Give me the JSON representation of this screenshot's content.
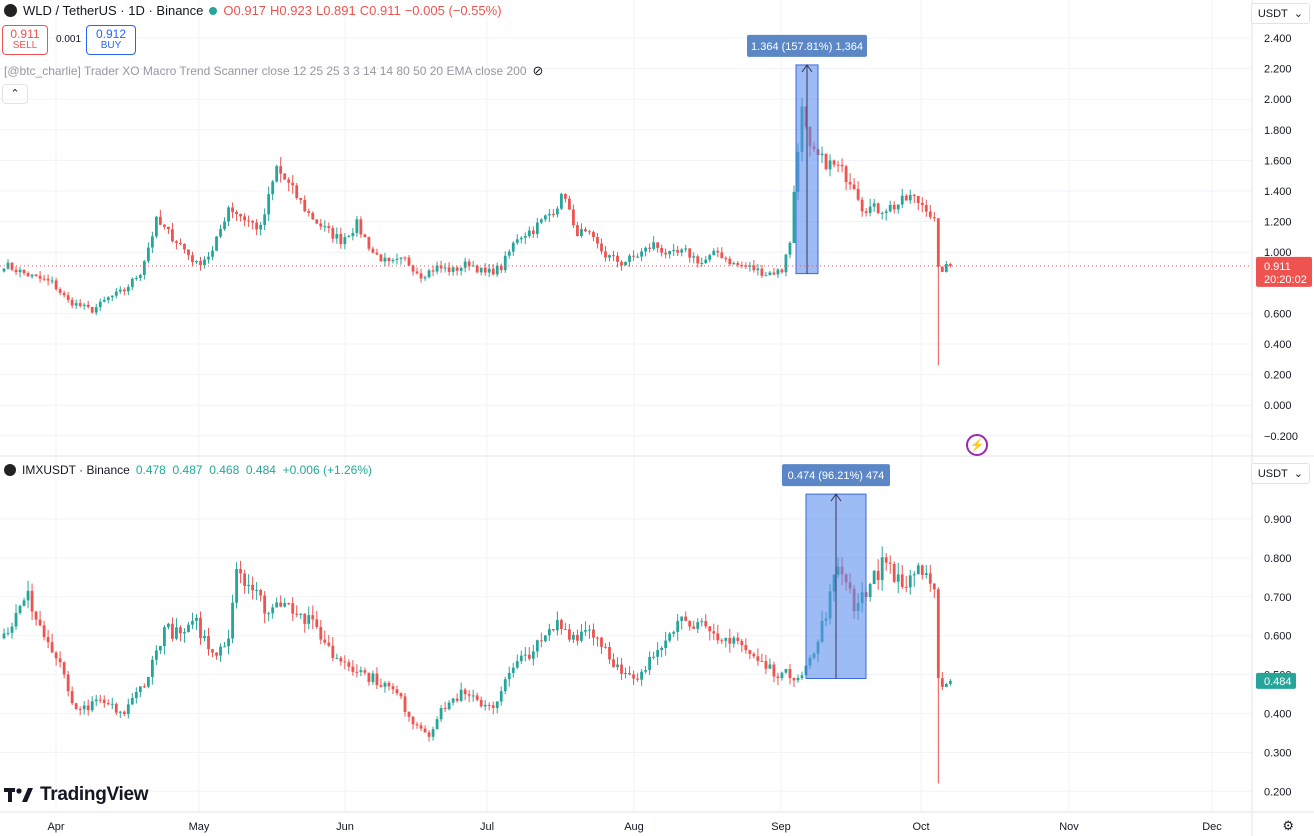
{
  "top": {
    "symbol": "WLD / TetherUS · 1D · Binance",
    "open": "O0.917",
    "high": "H0.923",
    "low": "L0.891",
    "close": "C0.911",
    "change": "−0.005 (−0.55%)",
    "sell_price": "0.911",
    "sell_label": "SELL",
    "spread": "0.001",
    "buy_price": "0.912",
    "buy_label": "BUY",
    "indicator": "[@btc_charlie] Trader XO Macro Trend Scanner close 12 25 25 3 3 14 14 80 50 20 EMA close 200",
    "currency": "USDT",
    "last_price": "0.911",
    "countdown": "20:20:02",
    "measure_label": "1.364 (157.81%) 1,364"
  },
  "bottom": {
    "symbol": "IMXUSDT · Binance",
    "values": "0.478  0.487  0.468  0.484  +0.006 (+1.26%)",
    "currency": "USDT",
    "last_price": "0.484",
    "measure_label": "0.474 (96.21%) 474"
  },
  "logo_text": "TradingView",
  "colors": {
    "up": "#26a69a",
    "down": "#ef5350",
    "measure": "#5b8def",
    "measure_label": "#5b87c7",
    "grid": "#f0f3fa",
    "axis_text": "#131722"
  },
  "chart_data": [
    {
      "type": "candlestick",
      "symbol": "WLD/USDT",
      "y_ticks": [
        "2.400",
        "2.200",
        "2.000",
        "1.800",
        "1.600",
        "1.400",
        "1.200",
        "1.000",
        "0.600",
        "0.400",
        "0.200",
        "0.000",
        "−0.200"
      ],
      "ylim": [
        -0.3,
        2.52
      ],
      "x_ticks": [
        "Apr",
        "May",
        "Jun",
        "Jul",
        "Aug",
        "Sep",
        "Oct",
        "Nov",
        "Dec"
      ],
      "anchors": [
        [
          0,
          0.92
        ],
        [
          6,
          0.85
        ],
        [
          12,
          0.8
        ],
        [
          16,
          0.68
        ],
        [
          22,
          0.62
        ],
        [
          26,
          0.7
        ],
        [
          30,
          0.75
        ],
        [
          34,
          0.87
        ],
        [
          38,
          1.2
        ],
        [
          44,
          1.05
        ],
        [
          48,
          0.92
        ],
        [
          52,
          1.0
        ],
        [
          56,
          1.3
        ],
        [
          60,
          1.22
        ],
        [
          64,
          1.15
        ],
        [
          68,
          1.55
        ],
        [
          72,
          1.4
        ],
        [
          76,
          1.25
        ],
        [
          80,
          1.15
        ],
        [
          84,
          1.08
        ],
        [
          88,
          1.18
        ],
        [
          92,
          1.0
        ],
        [
          96,
          0.92
        ],
        [
          100,
          0.95
        ],
        [
          104,
          0.85
        ],
        [
          108,
          0.9
        ],
        [
          112,
          0.88
        ],
        [
          116,
          0.93
        ],
        [
          120,
          0.86
        ],
        [
          124,
          0.9
        ],
        [
          128,
          1.1
        ],
        [
          132,
          1.15
        ],
        [
          136,
          1.25
        ],
        [
          140,
          1.38
        ],
        [
          142,
          1.15
        ],
        [
          146,
          1.1
        ],
        [
          150,
          0.98
        ],
        [
          154,
          0.93
        ],
        [
          158,
          0.98
        ],
        [
          162,
          1.05
        ],
        [
          166,
          0.98
        ],
        [
          170,
          1.0
        ],
        [
          174,
          0.93
        ],
        [
          178,
          1.0
        ],
        [
          182,
          0.92
        ],
        [
          186,
          0.9
        ],
        [
          190,
          0.86
        ],
        [
          194,
          0.88
        ],
        [
          195,
          1.0
        ],
        [
          196,
          1.05
        ],
        [
          197,
          1.4
        ],
        [
          198,
          1.7
        ],
        [
          199,
          1.92
        ],
        [
          201,
          1.65
        ],
        [
          204,
          1.6
        ],
        [
          208,
          1.55
        ],
        [
          212,
          1.45
        ],
        [
          214,
          1.3
        ],
        [
          218,
          1.28
        ],
        [
          222,
          1.3
        ],
        [
          226,
          1.36
        ],
        [
          230,
          1.3
        ],
        [
          232,
          1.2
        ],
        [
          233,
          0.88
        ],
        [
          236,
          0.91
        ]
      ],
      "last_close": 0.911,
      "low_wick": 0.26,
      "measure": {
        "from": 0.86,
        "to": 2.224,
        "change": 1.364,
        "percent": 157.81
      }
    },
    {
      "type": "candlestick",
      "symbol": "IMX/USDT",
      "y_ticks": [
        "0.900",
        "0.800",
        "0.700",
        "0.600",
        "0.500",
        "0.400",
        "0.300",
        "0.200"
      ],
      "ylim": [
        0.18,
        0.96
      ],
      "x_ticks": [
        "Apr",
        "May",
        "Jun",
        "Jul",
        "Aug",
        "Sep",
        "Oct",
        "Nov",
        "Dec"
      ],
      "anchors": [
        [
          0,
          0.6
        ],
        [
          6,
          0.7
        ],
        [
          10,
          0.6
        ],
        [
          14,
          0.52
        ],
        [
          18,
          0.4
        ],
        [
          24,
          0.43
        ],
        [
          30,
          0.4
        ],
        [
          36,
          0.5
        ],
        [
          40,
          0.62
        ],
        [
          44,
          0.6
        ],
        [
          48,
          0.63
        ],
        [
          52,
          0.55
        ],
        [
          56,
          0.6
        ],
        [
          58,
          0.78
        ],
        [
          62,
          0.72
        ],
        [
          66,
          0.66
        ],
        [
          70,
          0.7
        ],
        [
          74,
          0.65
        ],
        [
          78,
          0.62
        ],
        [
          82,
          0.55
        ],
        [
          86,
          0.53
        ],
        [
          90,
          0.5
        ],
        [
          94,
          0.48
        ],
        [
          98,
          0.45
        ],
        [
          102,
          0.38
        ],
        [
          106,
          0.35
        ],
        [
          110,
          0.42
        ],
        [
          114,
          0.45
        ],
        [
          118,
          0.43
        ],
        [
          122,
          0.42
        ],
        [
          126,
          0.5
        ],
        [
          130,
          0.55
        ],
        [
          134,
          0.58
        ],
        [
          138,
          0.63
        ],
        [
          142,
          0.6
        ],
        [
          146,
          0.62
        ],
        [
          150,
          0.57
        ],
        [
          154,
          0.5
        ],
        [
          158,
          0.48
        ],
        [
          162,
          0.55
        ],
        [
          166,
          0.62
        ],
        [
          170,
          0.65
        ],
        [
          174,
          0.62
        ],
        [
          178,
          0.58
        ],
        [
          182,
          0.6
        ],
        [
          186,
          0.55
        ],
        [
          190,
          0.52
        ],
        [
          194,
          0.5
        ],
        [
          198,
          0.5
        ],
        [
          202,
          0.55
        ],
        [
          206,
          0.7
        ],
        [
          208,
          0.78
        ],
        [
          210,
          0.75
        ],
        [
          212,
          0.68
        ],
        [
          216,
          0.73
        ],
        [
          220,
          0.8
        ],
        [
          224,
          0.72
        ],
        [
          228,
          0.78
        ],
        [
          232,
          0.7
        ],
        [
          233,
          0.48
        ],
        [
          236,
          0.484
        ]
      ],
      "last_close": 0.484,
      "low_wick": 0.22,
      "measure": {
        "from": 0.49,
        "to": 0.964,
        "change": 0.474,
        "percent": 96.21
      }
    }
  ]
}
